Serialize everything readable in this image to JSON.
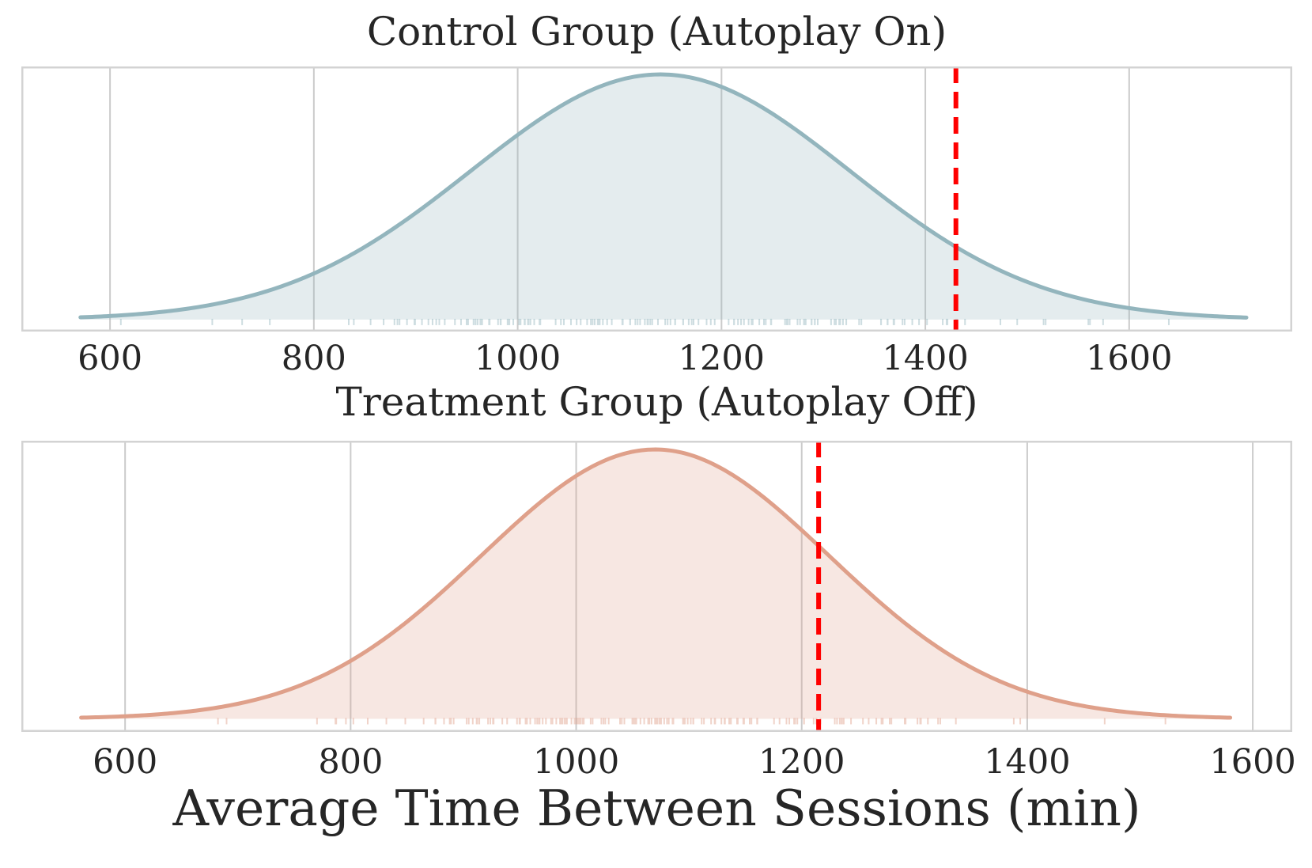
{
  "figure": {
    "xlabel": "Average Time Between Sessions (min)",
    "background": "#ffffff",
    "text_color": "#262626",
    "grid_color": "#cbcbcb",
    "spine_color": "#d3d3d3",
    "vline_color": "#ff0000"
  },
  "chart_data": [
    {
      "type": "area",
      "subtype": "kde-density",
      "title": "Control Group (Autoplay On)",
      "xlabel": "Average Time Between Sessions (min)",
      "ylabel": "",
      "y_axis_visible": false,
      "grid": "vertical",
      "legend_position": "none",
      "xticks": [
        600,
        800,
        1000,
        1200,
        1400,
        1600
      ],
      "xlim": [
        513,
        1760
      ],
      "curve": {
        "shape": "normal",
        "mean": 1140,
        "sd": 186,
        "support": [
          571,
          1715
        ],
        "peak_x": 1140
      },
      "vline": {
        "x": 1430,
        "style": "dashed",
        "color": "#ff0000"
      },
      "colors": {
        "line": "#93b5bd",
        "fill_rgba": "rgba(147,181,189,0.25)"
      },
      "rug": {
        "present": true,
        "count": 160,
        "seed": 11
      }
    },
    {
      "type": "area",
      "subtype": "kde-density",
      "title": "Treatment Group (Autoplay Off)",
      "xlabel": "Average Time Between Sessions (min)",
      "ylabel": "",
      "y_axis_visible": false,
      "grid": "vertical",
      "legend_position": "none",
      "xticks": [
        600,
        800,
        1000,
        1200,
        1400,
        1600
      ],
      "xlim": [
        508,
        1635
      ],
      "curve": {
        "shape": "normal",
        "mean": 1070,
        "sd": 154,
        "support": [
          561,
          1580
        ],
        "peak_x": 1070
      },
      "vline": {
        "x": 1215,
        "style": "dashed",
        "color": "#ff0000"
      },
      "colors": {
        "line": "#dfa08a",
        "fill_rgba": "rgba(223,160,138,0.25)"
      },
      "rug": {
        "present": true,
        "count": 160,
        "seed": 29
      }
    }
  ]
}
